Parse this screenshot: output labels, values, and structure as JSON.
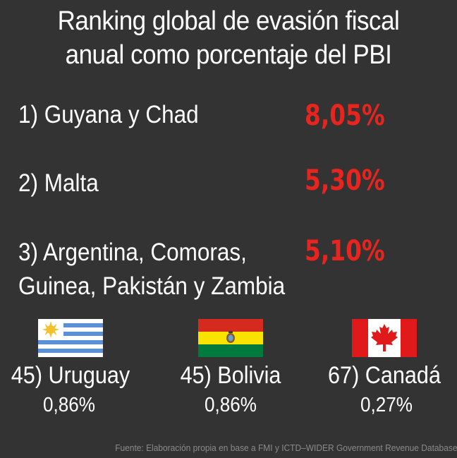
{
  "title": {
    "line1": "Ranking global de evasión fiscal",
    "line2": "anual como porcentaje del PBI"
  },
  "ranking": [
    {
      "label": "1) Guyana y Chad",
      "value": "8,05%"
    },
    {
      "label": "2) Malta",
      "value": "5,30%"
    },
    {
      "label_line1": "3) Argentina, Comoras,",
      "label_line2": "Guinea, Pakistán y Zambia",
      "value": "5,10%"
    }
  ],
  "countries": [
    {
      "name": "45) Uruguay",
      "percent": "0,86%",
      "flag_icon": "uruguay-flag-icon"
    },
    {
      "name": "45) Bolivia",
      "percent": "0,86%",
      "flag_icon": "bolivia-flag-icon"
    },
    {
      "name": "67) Canadá",
      "percent": "0,27%",
      "flag_icon": "canada-flag-icon"
    }
  ],
  "source": "Fuente: Elaboración propia en base a FMI y ICTD–WIDER Government Revenue Database",
  "colors": {
    "background": "#333333",
    "text": "#ffffff",
    "highlight": "#e8241f",
    "source_text": "#8a8a8a"
  }
}
